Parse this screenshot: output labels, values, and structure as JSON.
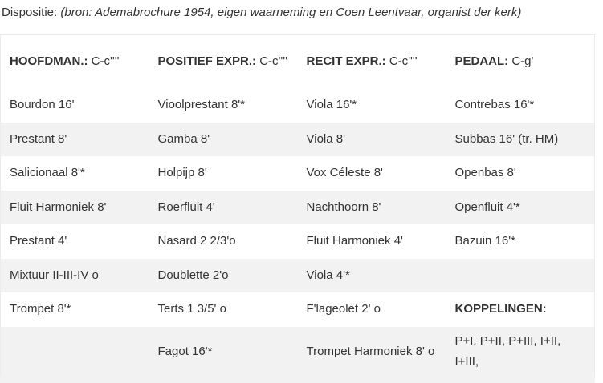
{
  "intro": {
    "label": "Dispositie:",
    "source": "(bron: Ademabrochure 1954, eigen waarneming en Coen Leentvaar, organist der kerk)"
  },
  "headers": [
    {
      "name": "HOOFDMAN.:",
      "range": "C-c''''"
    },
    {
      "name": "POSITIEF EXPR.:",
      "range": "C-c''''"
    },
    {
      "name": "RECIT EXPR.:",
      "range": "C-c''''"
    },
    {
      "name": "PEDAAL:",
      "range": "C-g'"
    }
  ],
  "rows": [
    [
      "Bourdon 16'",
      "Vioolprestant 8'*",
      "Viola 16'*",
      "Contrebas 16'*"
    ],
    [
      "Prestant 8'",
      "Gamba 8'",
      "Viola 8'",
      "Subbas 16' (tr. HM)"
    ],
    [
      "Salicionaal 8'*",
      "Holpijp 8'",
      "Vox Céleste 8'",
      "Openbas 8'"
    ],
    [
      "Fluit Harmoniek 8'",
      "Roerfluit 4'",
      "Nachthoorn 8'",
      "Openfluit 4'*"
    ],
    [
      "Prestant 4'",
      "Nasard 2 2/3'o",
      "Fluit Harmoniek 4'",
      "Bazuin 16'*"
    ],
    [
      "Mixtuur II-III-IV  o",
      "Doublette 2'o",
      "Viola 4'*",
      ""
    ],
    [
      "Trompet 8'*",
      "Terts 1 3/5' o",
      "F'lageolet 2' o",
      "KOPPELINGEN:"
    ],
    [
      "",
      "Fagot 16'*",
      "Trompet Harmoniek 8' o",
      "P+I, P+II, P+III, I+II, I+III,"
    ]
  ]
}
